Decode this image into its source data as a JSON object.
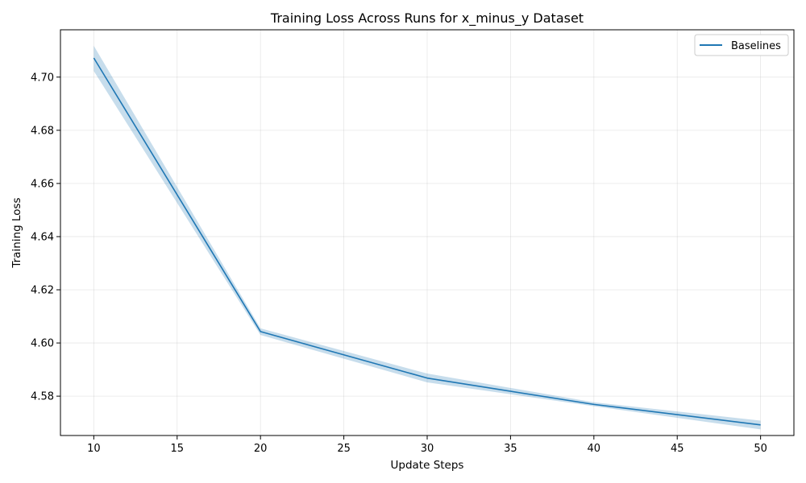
{
  "chart_data": {
    "type": "line",
    "title": "Training Loss Across Runs for x_minus_y Dataset",
    "xlabel": "Update Steps",
    "ylabel": "Training Loss",
    "xlim": [
      8,
      52
    ],
    "ylim": [
      4.5652,
      4.7178
    ],
    "x_ticks": [
      10,
      15,
      20,
      25,
      30,
      35,
      40,
      45,
      50
    ],
    "y_ticks": [
      4.58,
      4.6,
      4.62,
      4.64,
      4.66,
      4.68,
      4.7
    ],
    "y_tick_labels": [
      "4.58",
      "4.60",
      "4.62",
      "4.64",
      "4.66",
      "4.68",
      "4.70"
    ],
    "grid": true,
    "legend_position": "top-right",
    "series": [
      {
        "name": "Baselines",
        "color": "#1f77b4",
        "x": [
          10,
          20,
          30,
          40,
          50
        ],
        "y": [
          4.7072,
          4.6043,
          4.5868,
          4.5769,
          4.5692
        ],
        "band_upper": [
          4.7118,
          4.6055,
          4.5885,
          4.5777,
          4.5708
        ],
        "band_lower": [
          4.7023,
          4.603,
          4.5852,
          4.5762,
          4.5675
        ]
      }
    ]
  }
}
